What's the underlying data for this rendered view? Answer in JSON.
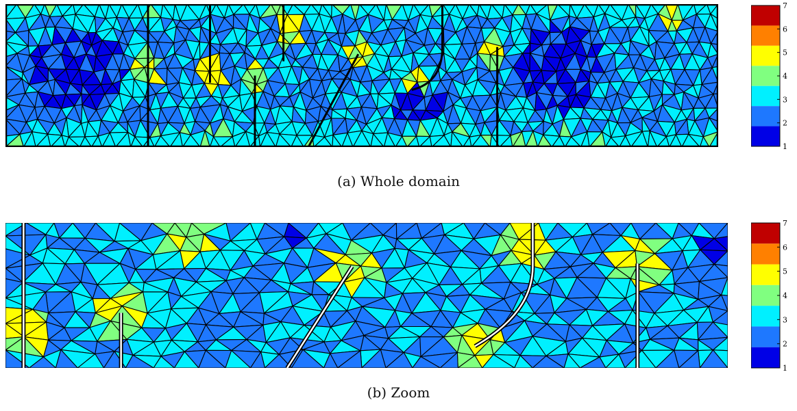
{
  "figure": {
    "panels": [
      {
        "id": "a",
        "caption": "(a) Whole domain",
        "colorbar_ticks": [
          "7",
          "6",
          "5",
          "4",
          "3",
          "2",
          "1"
        ]
      },
      {
        "id": "b",
        "caption": "(b) Zoom",
        "colorbar_ticks": [
          "7",
          "6",
          "5",
          "4",
          "3",
          "2",
          "1"
        ]
      }
    ]
  },
  "colors": {
    "level_1": "#0000e6",
    "level_2": "#1e78ff",
    "level_3": "#00f0ff",
    "level_4": "#80ff80",
    "level_5": "#ffff00",
    "level_6": "#ff8000",
    "level_7": "#c00000",
    "mesh_edge": "#000000"
  },
  "colorbar_range": [
    1,
    7
  ]
}
